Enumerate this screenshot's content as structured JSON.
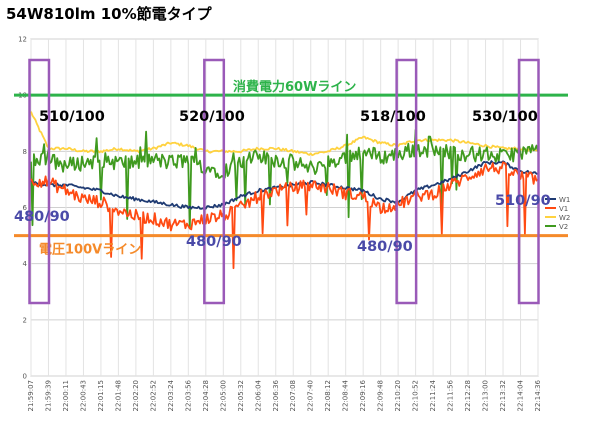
{
  "title": "54W810lm 10%節電タイプ",
  "chart_data": {
    "type": "line",
    "ylim": [
      0,
      12
    ],
    "y_ticks": [
      "0",
      "2",
      "4",
      "6",
      "8",
      "10",
      "12"
    ],
    "x_ticks": [
      "21:59:07",
      "21:59:39",
      "22:00:11",
      "22:00:43",
      "22:01:15",
      "22:01:48",
      "22:02:20",
      "22:02:52",
      "22:03:24",
      "22:03:56",
      "22:04:28",
      "22:05:00",
      "22:05:32",
      "22:06:04",
      "22:06:36",
      "22:07:08",
      "22:07:40",
      "22:08:12",
      "22:08:44",
      "22:09:16",
      "22:09:48",
      "22:10:20",
      "22:10:52",
      "22:11:24",
      "22:11:56",
      "22:12:28",
      "22:13:00",
      "22:13:32",
      "22:14:04",
      "22:14:36"
    ],
    "grid": true,
    "legend_position": "right",
    "colors": {
      "W1": "#1f3b73",
      "V1": "#ff4a12",
      "W2": "#ffd23f",
      "V2": "#3f9a1f",
      "limit60": "#2db34a",
      "line100": "#f58a2a",
      "box": "#9a5ab8",
      "low": "#4a4aa8"
    },
    "series": [
      {
        "name": "W1",
        "values": [
          6.9,
          6.8,
          6.8,
          6.7,
          6.6,
          6.4,
          6.3,
          6.2,
          6.1,
          6.0,
          6.0,
          6.1,
          6.4,
          6.6,
          6.7,
          6.8,
          6.9,
          6.8,
          6.7,
          6.6,
          6.3,
          6.2,
          6.6,
          6.8,
          7.0,
          7.3,
          7.6,
          7.6,
          7.3,
          7.2
        ]
      },
      {
        "name": "V1",
        "values": [
          7.0,
          6.9,
          6.6,
          6.3,
          6.2,
          5.9,
          5.7,
          5.6,
          5.4,
          5.4,
          5.6,
          5.7,
          6.0,
          6.4,
          6.6,
          6.7,
          6.8,
          6.7,
          6.5,
          6.4,
          6.0,
          6.1,
          6.4,
          6.5,
          6.8,
          7.1,
          7.4,
          7.4,
          7.1,
          7.0
        ]
      },
      {
        "name": "W2",
        "values": [
          9.4,
          8.1,
          8.1,
          8.0,
          8.0,
          8.1,
          8.0,
          8.1,
          8.3,
          8.2,
          8.0,
          8.0,
          8.0,
          8.1,
          8.1,
          8.0,
          7.9,
          8.0,
          8.2,
          8.5,
          8.3,
          8.2,
          8.4,
          8.4,
          8.4,
          8.3,
          8.2,
          8.1,
          8.1,
          8.0
        ]
      },
      {
        "name": "V2",
        "values": [
          7.7,
          7.7,
          7.5,
          7.6,
          7.7,
          7.6,
          7.6,
          7.7,
          7.6,
          7.7,
          7.4,
          7.3,
          7.6,
          7.8,
          7.7,
          7.6,
          7.4,
          7.6,
          7.8,
          8.0,
          7.8,
          7.9,
          8.1,
          8.0,
          8.0,
          7.9,
          7.9,
          7.8,
          8.0,
          8.0
        ]
      }
    ],
    "annotations": {
      "limit60": {
        "label": "消費電力60Wライン",
        "value": 10
      },
      "line100": {
        "label": "電圧100Vライン",
        "value": 5
      },
      "boxes": [
        {
          "top_label": "510/100",
          "bottom_label": "480/90",
          "from_tick": 0,
          "to_tick": 1
        },
        {
          "top_label": "520/100",
          "bottom_label": "480/90",
          "from_tick": 10,
          "to_tick": 11
        },
        {
          "top_label": "518/100",
          "bottom_label": "480/90",
          "from_tick": 21,
          "to_tick": 22
        },
        {
          "top_label": "530/100",
          "bottom_label": "510/90",
          "from_tick": 28,
          "to_tick": 29
        }
      ]
    }
  }
}
